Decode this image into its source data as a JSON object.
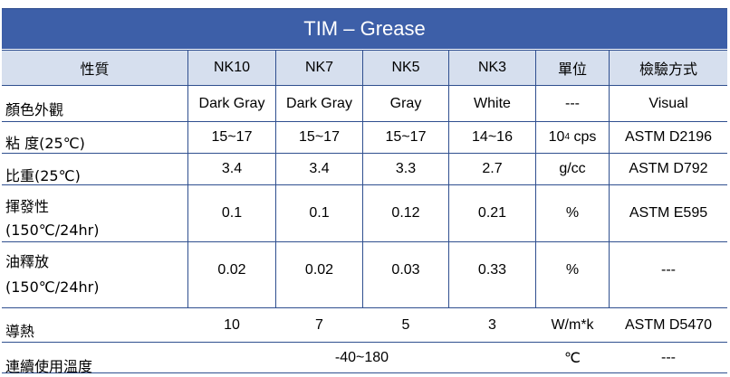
{
  "title": "TIM – Grease",
  "header": [
    "性質",
    "NK10",
    "NK7",
    "NK5",
    "NK3",
    "單位",
    "檢驗方式"
  ],
  "rows": [
    {
      "label": "顏色外觀",
      "values": [
        "Dark Gray",
        "Dark Gray",
        "Gray",
        "White"
      ],
      "unit": "---",
      "method": "Visual"
    },
    {
      "label": "粘 度(25℃)",
      "values": [
        "15~17",
        "15~17",
        "15~17",
        "14~16"
      ],
      "unit_base": "10",
      "unit_sup": "4",
      "unit_rest": " cps",
      "method": "ASTM D2196"
    },
    {
      "label": "比重(25℃)",
      "values": [
        "3.4",
        "3.4",
        "3.3",
        "2.7"
      ],
      "unit": "g/cc",
      "method": "ASTM D792"
    },
    {
      "label_line1": "揮發性",
      "label_line2": "(150℃/24hr)",
      "values": [
        "0.1",
        "0.1",
        "0.12",
        "0.21"
      ],
      "unit": "%",
      "method": "ASTM E595"
    },
    {
      "label_line1": "油釋放",
      "label_line2": "(150℃/24hr)",
      "values": [
        "0.02",
        "0.02",
        "0.03",
        "0.33"
      ],
      "unit": "%",
      "method": "---"
    },
    {
      "label": "導熱",
      "values": [
        "10",
        "7",
        "5",
        "3"
      ],
      "unit": "W/m*k",
      "method": "ASTM D5470"
    },
    {
      "label": "連續使用溫度",
      "range": "-40~180",
      "unit": "℃",
      "method": "---"
    }
  ]
}
